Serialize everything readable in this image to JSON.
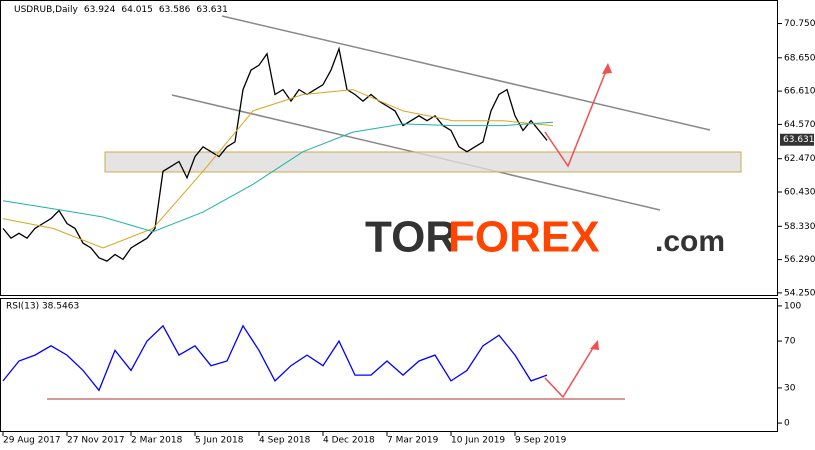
{
  "chart_data": [
    {
      "type": "line",
      "title": "USDRUB,Daily",
      "header_values": [
        63.924,
        64.015,
        63.586,
        63.631
      ],
      "last_price": 63.631,
      "watermark": [
        "TOR",
        "FOREX",
        ".com"
      ],
      "xlim": [
        -3,
        775
      ],
      "xticks": [
        {
          "value": 0,
          "label": "29 Aug 2017"
        },
        {
          "value": 64,
          "label": "27 Nov 2017"
        },
        {
          "value": 128,
          "label": "2 Mar 2018"
        },
        {
          "value": 192,
          "label": "5 Jun 2018"
        },
        {
          "value": 256,
          "label": "4 Sep 2018"
        },
        {
          "value": 320,
          "label": "4 Dec 2018"
        },
        {
          "value": 384,
          "label": "7 Mar 2019"
        },
        {
          "value": 448,
          "label": "10 Jun 2019"
        },
        {
          "value": 512,
          "label": "9 Sep 2019"
        }
      ],
      "ylim": [
        54.06,
        72.13
      ],
      "yticks": [
        {
          "value": 70.75,
          "label": "70.750"
        },
        {
          "value": 68.65,
          "label": "68.650"
        },
        {
          "value": 66.61,
          "label": "66.610"
        },
        {
          "value": 64.57,
          "label": "64.570"
        },
        {
          "value": 62.47,
          "label": "62.470"
        },
        {
          "value": 60.43,
          "label": "60.430"
        },
        {
          "value": 58.33,
          "label": "58.330"
        },
        {
          "value": 56.29,
          "label": "56.290"
        },
        {
          "value": 54.25,
          "label": "54.250"
        }
      ],
      "series": [
        {
          "name": "Close",
          "color": "#000000",
          "x": [
            0,
            8,
            16,
            24,
            32,
            40,
            48,
            56,
            64,
            72,
            80,
            88,
            96,
            104,
            112,
            120,
            128,
            136,
            144,
            152,
            160,
            168,
            176,
            184,
            192,
            200,
            208,
            216,
            224,
            232,
            240,
            248,
            256,
            264,
            272,
            280,
            288,
            296,
            304,
            312,
            320,
            328,
            336,
            344,
            352,
            360,
            368,
            376,
            384,
            392,
            400,
            408,
            416,
            424,
            432,
            440,
            448,
            456,
            464,
            472,
            480,
            488,
            496,
            504,
            512,
            520,
            528,
            536,
            544
          ],
          "values": [
            58.2,
            57.6,
            57.9,
            57.6,
            58.2,
            58.5,
            58.8,
            59.3,
            58.5,
            58.2,
            57.3,
            57.0,
            56.4,
            56.2,
            56.6,
            56.3,
            57.0,
            57.3,
            57.6,
            58.2,
            61.7,
            62.0,
            62.3,
            61.3,
            62.6,
            63.2,
            62.9,
            62.6,
            63.2,
            63.5,
            66.7,
            67.9,
            68.2,
            68.9,
            66.4,
            66.7,
            66.0,
            66.7,
            66.4,
            66.7,
            67.0,
            67.9,
            69.2,
            66.7,
            66.4,
            66.0,
            66.4,
            66.0,
            65.7,
            65.4,
            64.5,
            64.8,
            65.1,
            64.8,
            65.1,
            64.5,
            64.2,
            63.2,
            62.9,
            63.2,
            63.5,
            65.4,
            66.4,
            66.7,
            65.1,
            64.2,
            64.8,
            64.2,
            63.6
          ]
        },
        {
          "name": "MA fast",
          "color": "#daa520",
          "x": [
            0,
            50,
            100,
            150,
            200,
            250,
            300,
            350,
            400,
            450,
            500,
            550
          ],
          "values": [
            58.8,
            58.2,
            57.0,
            58.2,
            61.7,
            65.4,
            66.4,
            66.7,
            65.4,
            64.8,
            64.8,
            64.5
          ]
        },
        {
          "name": "MA slow",
          "color": "#20b2aa",
          "x": [
            0,
            50,
            100,
            150,
            200,
            250,
            300,
            350,
            400,
            450,
            500,
            550
          ],
          "values": [
            59.9,
            59.4,
            58.9,
            58.0,
            59.2,
            60.9,
            62.9,
            64.1,
            64.6,
            64.5,
            64.5,
            64.7
          ]
        }
      ]
    },
    {
      "type": "line",
      "title": "RSI(13) 38.5463",
      "xlim": [
        -3,
        775
      ],
      "ylim": [
        -7.6,
        105.9
      ],
      "yticks": [
        100,
        70,
        30,
        0
      ],
      "series": [
        {
          "name": "RSI",
          "color": "#0000ff",
          "x": [
            0,
            16,
            32,
            48,
            64,
            80,
            96,
            112,
            128,
            144,
            160,
            176,
            192,
            208,
            224,
            240,
            256,
            272,
            288,
            304,
            320,
            336,
            352,
            368,
            384,
            400,
            416,
            432,
            448,
            464,
            480,
            496,
            512,
            528,
            544
          ],
          "values": [
            36,
            53,
            58,
            66,
            58,
            45,
            28,
            62,
            45,
            70,
            83,
            58,
            66,
            49,
            53,
            83,
            62,
            36,
            49,
            58,
            49,
            70,
            41,
            41,
            53,
            41,
            53,
            58,
            36,
            45,
            66,
            75,
            58,
            36,
            41
          ]
        }
      ]
    }
  ]
}
